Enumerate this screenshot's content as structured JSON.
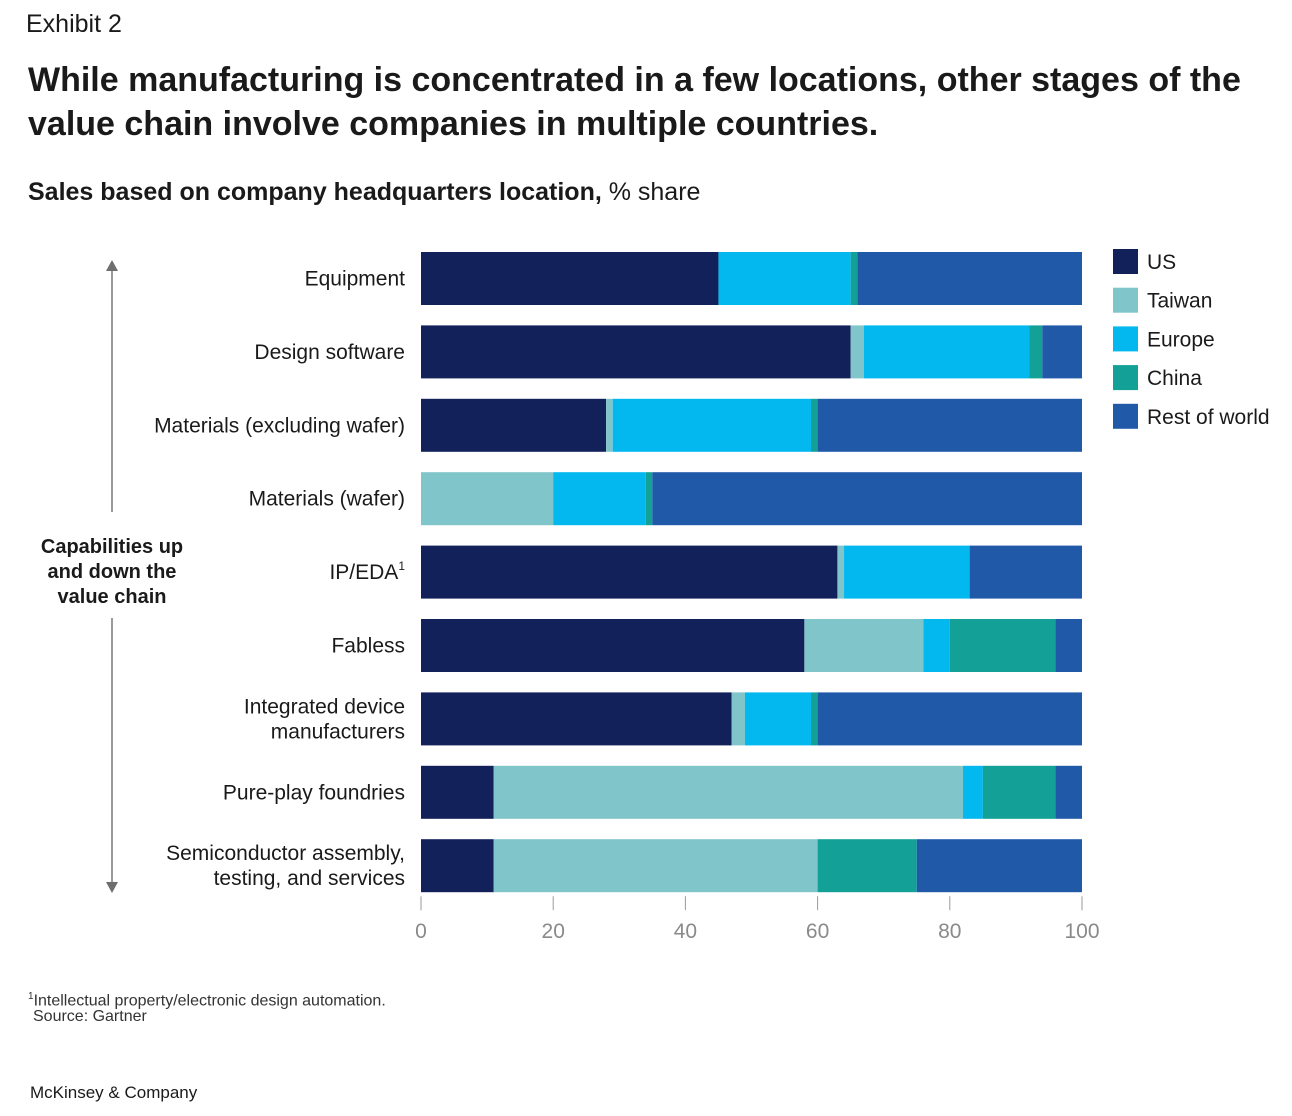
{
  "exhibit_label": "Exhibit 2",
  "headline": "While manufacturing is concentrated in a few locations, other stages of the value chain involve companies in multiple countries.",
  "subtitle_bold": "Sales based on company headquarters location,",
  "subtitle_rest": " % share",
  "side_label": [
    "Capabilities up",
    "and down the",
    "value chain"
  ],
  "footnote_marker": "1",
  "footnote_text": "Intellectual property/electronic design automation.",
  "source": "Source: Gartner",
  "brand": "McKinsey & Company",
  "chart_data": {
    "type": "bar",
    "orientation": "horizontal",
    "stacked": true,
    "title": "Sales based on company headquarters location, % share",
    "xlim": [
      0,
      100
    ],
    "xticks": [
      0,
      20,
      40,
      60,
      80,
      100
    ],
    "categories": [
      {
        "lines": [
          "Equipment"
        ]
      },
      {
        "lines": [
          "Design software"
        ]
      },
      {
        "lines": [
          "Materials (excluding wafer)"
        ]
      },
      {
        "lines": [
          "Materials (wafer)"
        ]
      },
      {
        "lines": [
          "IP/EDA"
        ],
        "sup": "1"
      },
      {
        "lines": [
          "Fabless"
        ]
      },
      {
        "lines": [
          "Integrated device",
          "manufacturers"
        ]
      },
      {
        "lines": [
          "Pure-play foundries"
        ]
      },
      {
        "lines": [
          "Semiconductor assembly,",
          "testing, and services"
        ]
      }
    ],
    "series": [
      {
        "name": "US",
        "color": "#13215a",
        "values": [
          45,
          65,
          28,
          0,
          63,
          58,
          47,
          11,
          11
        ]
      },
      {
        "name": "Taiwan",
        "color": "#80c5ca",
        "values": [
          0,
          2,
          1,
          20,
          1,
          18,
          2,
          71,
          49
        ]
      },
      {
        "name": "Europe",
        "color": "#03b7ef",
        "values": [
          20,
          25,
          30,
          14,
          19,
          4,
          10,
          3,
          0
        ]
      },
      {
        "name": "China",
        "color": "#12a097",
        "values": [
          1,
          2,
          1,
          1,
          0,
          16,
          1,
          11,
          15
        ]
      },
      {
        "name": "Rest of world",
        "color": "#2159a9",
        "values": [
          34,
          6,
          40,
          65,
          17,
          4,
          40,
          4,
          25
        ]
      }
    ]
  }
}
